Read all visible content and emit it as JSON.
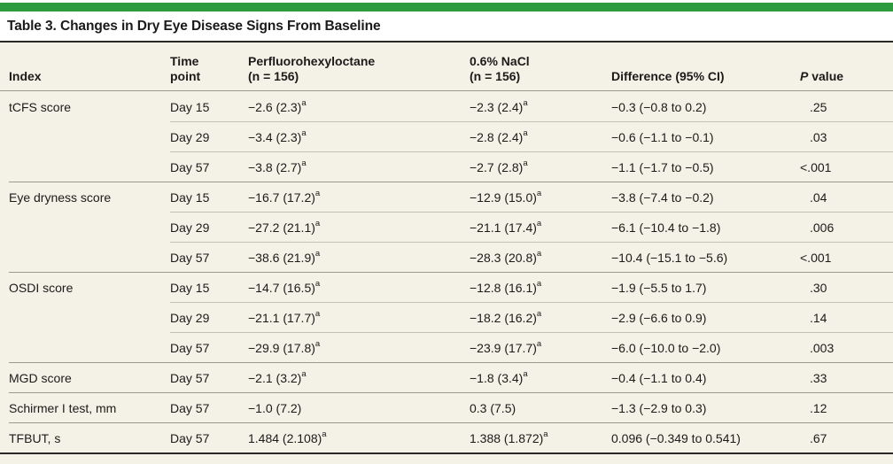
{
  "title": "Table 3. Changes in Dry Eye Disease Signs From Baseline",
  "colors": {
    "accent_green": "#2e9b3f",
    "table_background": "#f4f1e7",
    "rule_dark": "#2a2824",
    "line_group": "#9b998d",
    "line_sub": "#c3c1b3",
    "text": "#1c1b19"
  },
  "table": {
    "header": {
      "index": "Index",
      "time": "Time\npoint",
      "pfho": "Perfluorohexyloctane\n(n = 156)",
      "nacl": "0.6% NaCl\n(n = 156)",
      "diff": "Difference (95% CI)",
      "p_italic": "P",
      "p_rest": " value"
    },
    "footnote_marker": "a",
    "rows": [
      {
        "index": "tCFS score",
        "time": "Day 15",
        "pfho": "−2.6 (2.3)",
        "pfho_sup": true,
        "nacl": "−2.3 (2.4)",
        "nacl_sup": true,
        "diff": "−0.3 (−0.8 to 0.2)",
        "p": ".25",
        "group": true
      },
      {
        "index": "",
        "time": "Day 29",
        "pfho": "−3.4 (2.3)",
        "pfho_sup": true,
        "nacl": "−2.8 (2.4)",
        "nacl_sup": true,
        "diff": "−0.6 (−1.1 to −0.1)",
        "p": ".03",
        "group": false
      },
      {
        "index": "",
        "time": "Day 57",
        "pfho": "−3.8 (2.7)",
        "pfho_sup": true,
        "nacl": "−2.7 (2.8)",
        "nacl_sup": true,
        "diff": "−1.1 (−1.7 to −0.5)",
        "p": "<.001",
        "group": false
      },
      {
        "index": "Eye dryness score",
        "time": "Day 15",
        "pfho": "−16.7 (17.2)",
        "pfho_sup": true,
        "nacl": "−12.9 (15.0)",
        "nacl_sup": true,
        "diff": "−3.8 (−7.4 to −0.2)",
        "p": ".04",
        "group": true
      },
      {
        "index": "",
        "time": "Day 29",
        "pfho": "−27.2 (21.1)",
        "pfho_sup": true,
        "nacl": "−21.1 (17.4)",
        "nacl_sup": true,
        "diff": "−6.1 (−10.4 to −1.8)",
        "p": ".006",
        "group": false
      },
      {
        "index": "",
        "time": "Day 57",
        "pfho": "−38.6 (21.9)",
        "pfho_sup": true,
        "nacl": "−28.3 (20.8)",
        "nacl_sup": true,
        "diff": "−10.4 (−15.1 to −5.6)",
        "p": "<.001",
        "group": false
      },
      {
        "index": "OSDI score",
        "time": "Day 15",
        "pfho": "−14.7 (16.5)",
        "pfho_sup": true,
        "nacl": "−12.8 (16.1)",
        "nacl_sup": true,
        "diff": "−1.9 (−5.5 to 1.7)",
        "p": ".30",
        "group": true
      },
      {
        "index": "",
        "time": "Day 29",
        "pfho": "−21.1 (17.7)",
        "pfho_sup": true,
        "nacl": "−18.2 (16.2)",
        "nacl_sup": true,
        "diff": "−2.9 (−6.6 to 0.9)",
        "p": ".14",
        "group": false
      },
      {
        "index": "",
        "time": "Day 57",
        "pfho": "−29.9 (17.8)",
        "pfho_sup": true,
        "nacl": "−23.9 (17.7)",
        "nacl_sup": true,
        "diff": "−6.0 (−10.0 to −2.0)",
        "p": ".003",
        "group": false
      },
      {
        "index": "MGD score",
        "time": "Day 57",
        "pfho": "−2.1 (3.2)",
        "pfho_sup": true,
        "nacl": "−1.8 (3.4)",
        "nacl_sup": true,
        "diff": "−0.4 (−1.1 to 0.4)",
        "p": ".33",
        "group": true
      },
      {
        "index": "Schirmer I test, mm",
        "time": "Day 57",
        "pfho": "−1.0 (7.2)",
        "pfho_sup": false,
        "nacl": "0.3 (7.5)",
        "nacl_sup": false,
        "diff": "−1.3 (−2.9 to 0.3)",
        "p": ".12",
        "group": true
      },
      {
        "index": "TFBUT, s",
        "time": "Day 57",
        "pfho": "1.484 (2.108)",
        "pfho_sup": true,
        "nacl": "1.388 (1.872)",
        "nacl_sup": true,
        "diff": "0.096 (−0.349 to 0.541)",
        "p": ".67",
        "group": true
      }
    ]
  }
}
